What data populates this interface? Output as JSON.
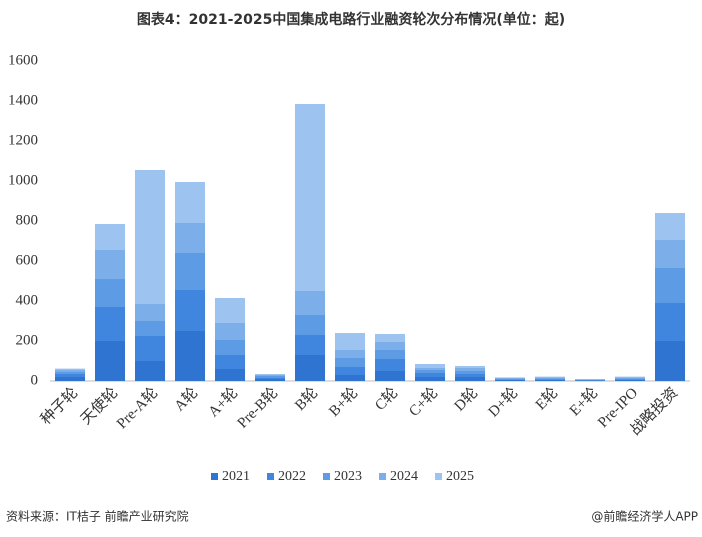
{
  "chart_data": {
    "type": "stacked_bar",
    "title": "图表4：2021-2025中国集成电路行业融资轮次分布情况(单位：起)",
    "categories": [
      "种子轮",
      "天使轮",
      "Pre-A轮",
      "A轮",
      "A+轮",
      "Pre-B轮",
      "B轮",
      "B+轮",
      "C轮",
      "C+轮",
      "D轮",
      "D+轮",
      "E轮",
      "E+轮",
      "Pre-IPO",
      "战略投资"
    ],
    "series": [
      {
        "name": "2021",
        "color": "#2f74d0",
        "values": [
          20,
          200,
          100,
          250,
          60,
          10,
          130,
          30,
          50,
          20,
          20,
          5,
          6,
          3,
          6,
          200
        ]
      },
      {
        "name": "2022",
        "color": "#4085de",
        "values": [
          15,
          170,
          125,
          205,
          70,
          8,
          100,
          40,
          60,
          20,
          15,
          4,
          5,
          2,
          5,
          190
        ]
      },
      {
        "name": "2023",
        "color": "#5d9be5",
        "values": [
          12,
          140,
          75,
          185,
          75,
          7,
          100,
          45,
          45,
          15,
          15,
          3,
          4,
          2,
          4,
          175
        ]
      },
      {
        "name": "2024",
        "color": "#7cafea",
        "values": [
          10,
          145,
          85,
          150,
          85,
          5,
          120,
          40,
          40,
          10,
          15,
          3,
          4,
          2,
          4,
          140
        ]
      },
      {
        "name": "2025",
        "color": "#9dc4f0",
        "values": [
          5,
          130,
          670,
          205,
          125,
          5,
          935,
          85,
          40,
          20,
          10,
          3,
          3,
          1,
          3,
          135
        ]
      }
    ],
    "ylim": [
      0,
      1600
    ],
    "yticks": [
      0,
      200,
      400,
      600,
      800,
      1000,
      1200,
      1400,
      1600
    ],
    "grid": false,
    "legend": "bottom",
    "source": "资料来源：IT桔子 前瞻产业研究院",
    "credit": "@前瞻经济学人APP"
  }
}
